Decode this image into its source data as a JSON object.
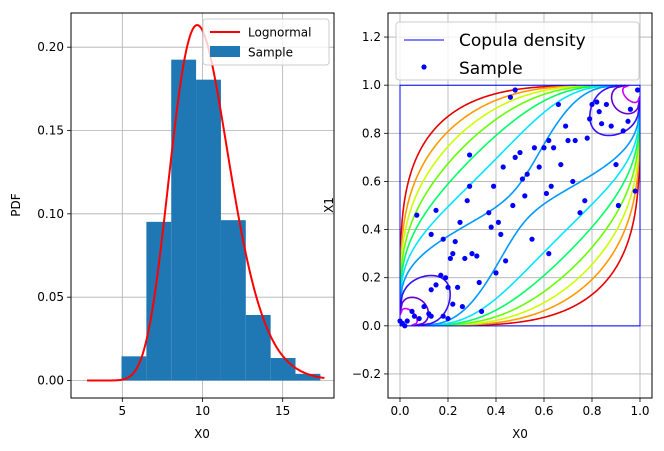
{
  "chart_data": [
    {
      "type": "bar",
      "xlabel": "X0",
      "ylabel": "PDF",
      "xlim": [
        1.8,
        18.2
      ],
      "ylim": [
        -0.0105,
        0.2205
      ],
      "xticks": [
        5,
        10,
        15
      ],
      "xtick_labels": [
        "5",
        "10",
        "15"
      ],
      "yticks": [
        0.0,
        0.05,
        0.1,
        0.15,
        0.2
      ],
      "ytick_labels": [
        "0.00",
        "0.05",
        "0.10",
        "0.15",
        "0.20"
      ],
      "grid": true,
      "legend_position": "top-right",
      "legend": [
        {
          "label": "Lognormal",
          "kind": "line",
          "color": "#ff0000"
        },
        {
          "label": "Sample",
          "kind": "patch",
          "color": "#1f77b4"
        }
      ],
      "histogram": {
        "name": "Sample",
        "color": "#1f77b4",
        "bin_edges": [
          4.95,
          6.5,
          8.05,
          9.6,
          11.15,
          12.7,
          14.25,
          15.8,
          17.35
        ],
        "values": [
          0.0145,
          0.0952,
          0.1925,
          0.1805,
          0.0962,
          0.0393,
          0.0135,
          0.004
        ]
      },
      "curve": {
        "name": "Lognormal",
        "color": "#ff0000",
        "mean_log": 2.305,
        "sigma_log": 0.19,
        "x_range": [
          2.8,
          17.6
        ]
      }
    },
    {
      "type": "scatter",
      "xlabel": "X0",
      "ylabel": "X1",
      "xlim": [
        -0.05,
        1.05
      ],
      "ylim": [
        -0.3,
        1.3
      ],
      "xticks": [
        0.0,
        0.2,
        0.4,
        0.6,
        0.8,
        1.0
      ],
      "xtick_labels": [
        "0.0",
        "0.2",
        "0.4",
        "0.6",
        "0.8",
        "1.0"
      ],
      "yticks": [
        -0.2,
        0.0,
        0.2,
        0.4,
        0.6,
        0.8,
        1.0,
        1.2
      ],
      "ytick_labels": [
        "−0.2",
        "0.0",
        "0.2",
        "0.4",
        "0.6",
        "0.8",
        "1.0",
        "1.2"
      ],
      "grid": true,
      "legend_position": "top-left",
      "legend": [
        {
          "label": "Copula density",
          "kind": "line",
          "color": "#0000ff"
        },
        {
          "label": "Sample",
          "kind": "marker",
          "color": "#0000ff"
        }
      ],
      "frame": {
        "name": "Copula density",
        "color": "#0000ff",
        "corners": [
          [
            0,
            0
          ],
          [
            1,
            0
          ],
          [
            1,
            1
          ],
          [
            0,
            1
          ]
        ]
      },
      "contours": {
        "model": "gaussian_copula",
        "rho": 0.72,
        "levels": [
          0.12,
          0.22,
          0.34,
          0.5,
          0.72,
          1.0,
          1.4,
          2.0,
          2.9,
          4.2
        ],
        "colors": [
          "#e60000",
          "#ff9900",
          "#ccff00",
          "#66ff00",
          "#00ff66",
          "#00e5ff",
          "#0099ff",
          "#3311ff",
          "#6600cc",
          "#cc00ff"
        ]
      },
      "series": [
        {
          "name": "Sample",
          "color": "#0000ff",
          "points": [
            [
              0.0,
              0.02
            ],
            [
              0.01,
              0.01
            ],
            [
              0.02,
              0.0
            ],
            [
              0.03,
              0.02
            ],
            [
              0.05,
              0.06
            ],
            [
              0.06,
              0.04
            ],
            [
              0.07,
              0.46
            ],
            [
              0.08,
              0.03
            ],
            [
              0.1,
              0.08
            ],
            [
              0.12,
              0.05
            ],
            [
              0.13,
              0.04
            ],
            [
              0.13,
              0.15
            ],
            [
              0.13,
              0.38
            ],
            [
              0.15,
              0.17
            ],
            [
              0.15,
              0.48
            ],
            [
              0.17,
              0.21
            ],
            [
              0.18,
              0.04
            ],
            [
              0.18,
              0.36
            ],
            [
              0.19,
              0.2
            ],
            [
              0.2,
              0.16
            ],
            [
              0.2,
              0.03
            ],
            [
              0.21,
              0.28
            ],
            [
              0.22,
              0.3
            ],
            [
              0.22,
              0.09
            ],
            [
              0.23,
              0.35
            ],
            [
              0.24,
              0.16
            ],
            [
              0.25,
              0.43
            ],
            [
              0.26,
              0.08
            ],
            [
              0.27,
              0.28
            ],
            [
              0.28,
              0.52
            ],
            [
              0.29,
              0.58
            ],
            [
              0.29,
              0.71
            ],
            [
              0.3,
              0.3
            ],
            [
              0.32,
              0.29
            ],
            [
              0.33,
              0.18
            ],
            [
              0.34,
              0.06
            ],
            [
              0.37,
              0.47
            ],
            [
              0.38,
              0.41
            ],
            [
              0.39,
              0.58
            ],
            [
              0.4,
              0.22
            ],
            [
              0.41,
              0.43
            ],
            [
              0.42,
              0.38
            ],
            [
              0.43,
              0.66
            ],
            [
              0.44,
              0.27
            ],
            [
              0.46,
              0.95
            ],
            [
              0.47,
              0.5
            ],
            [
              0.48,
              0.7
            ],
            [
              0.48,
              0.98
            ],
            [
              0.5,
              0.72
            ],
            [
              0.51,
              0.61
            ],
            [
              0.52,
              0.54
            ],
            [
              0.53,
              0.63
            ],
            [
              0.55,
              0.36
            ],
            [
              0.56,
              0.74
            ],
            [
              0.58,
              0.66
            ],
            [
              0.6,
              0.74
            ],
            [
              0.61,
              0.55
            ],
            [
              0.62,
              0.77
            ],
            [
              0.62,
              0.3
            ],
            [
              0.63,
              0.58
            ],
            [
              0.64,
              0.74
            ],
            [
              0.66,
              0.92
            ],
            [
              0.67,
              0.67
            ],
            [
              0.69,
              0.83
            ],
            [
              0.7,
              0.77
            ],
            [
              0.72,
              0.6
            ],
            [
              0.73,
              0.77
            ],
            [
              0.75,
              0.47
            ],
            [
              0.77,
              0.52
            ],
            [
              0.78,
              0.78
            ],
            [
              0.79,
              0.86
            ],
            [
              0.8,
              0.92
            ],
            [
              0.82,
              0.93
            ],
            [
              0.83,
              0.89
            ],
            [
              0.84,
              0.84
            ],
            [
              0.86,
              0.92
            ],
            [
              0.88,
              0.83
            ],
            [
              0.9,
              0.67
            ],
            [
              0.91,
              0.5
            ],
            [
              0.93,
              0.81
            ],
            [
              0.95,
              0.85
            ],
            [
              0.96,
              0.9
            ],
            [
              0.98,
              0.56
            ],
            [
              0.99,
              0.98
            ]
          ]
        }
      ]
    }
  ]
}
